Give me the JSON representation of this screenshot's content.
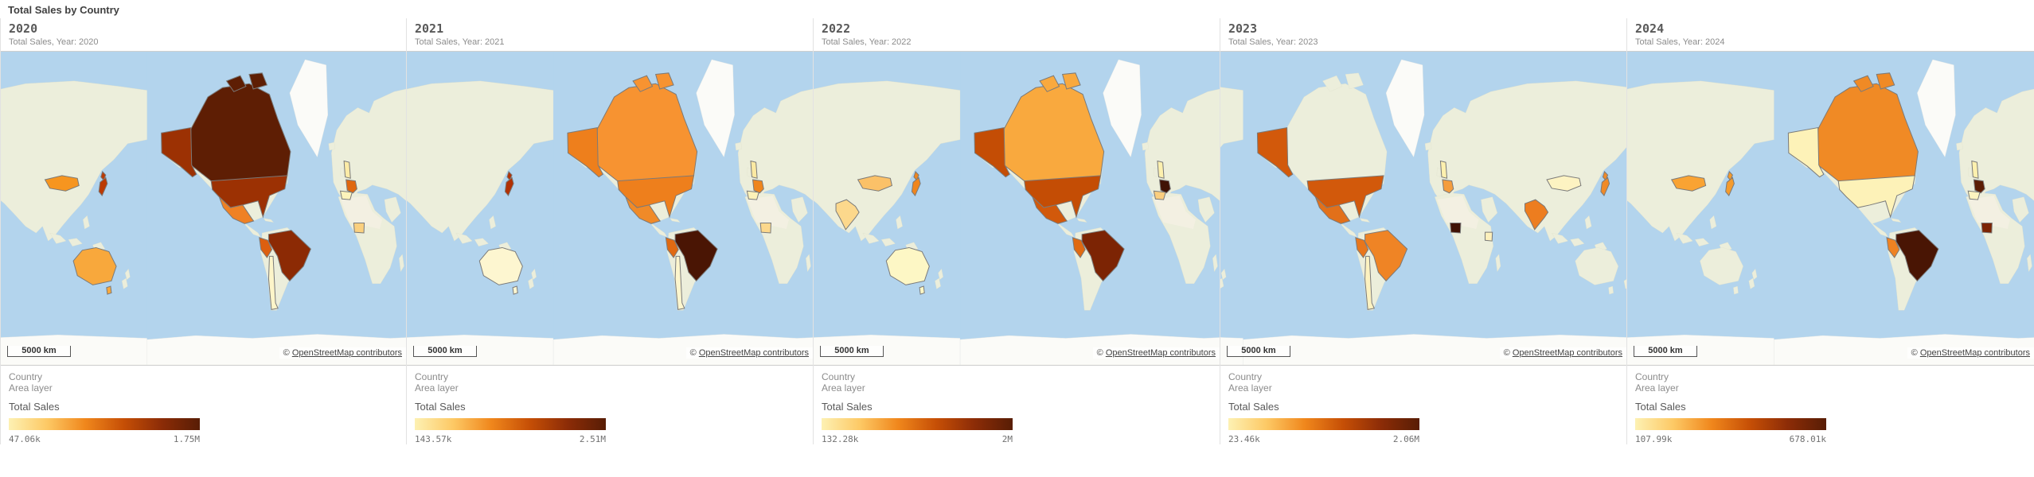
{
  "page": {
    "title": "Total Sales by Country"
  },
  "legend": {
    "dimension_label": "Country",
    "layer_label": "Area layer",
    "measure_label": "Total Sales"
  },
  "map_ui": {
    "scale_label": "5000 km",
    "attribution_symbol": "©",
    "attribution_link_text": "OpenStreetMap contributors"
  },
  "colors": {
    "ocean": "#b3d4ed",
    "land": "#eceedb",
    "ice": "#fbfbf8",
    "country_border": "#7a7a7a",
    "gradient_stops": [
      "#fdf1b3",
      "#fdc965",
      "#f0871c",
      "#c64f06",
      "#8c2c07",
      "#581d05"
    ]
  },
  "chart_data": [
    {
      "type": "choropleth_map",
      "year": "2020",
      "subtitle": "Total Sales, Year: 2020",
      "dimension": "Country",
      "measure": "Total Sales",
      "min_label": "47.06k",
      "max_label": "1.75M",
      "view": "pacific",
      "countries": {
        "canada": "#5e1e04",
        "usa": "#9c3103",
        "brazil": "#8c2a04",
        "japan": "#bb3a04",
        "peru": "#dc5f10",
        "mexico": "#ef8124",
        "france": "#e0670f",
        "mongolia": "#f6951f",
        "australia": "#f8a83c",
        "nigeria": "#fbd07e",
        "uk": "#fceba6",
        "spain": "#fdf3bb",
        "chile": "#fdf5c9"
      }
    },
    {
      "type": "choropleth_map",
      "year": "2021",
      "subtitle": "Total Sales, Year: 2021",
      "dimension": "Country",
      "measure": "Total Sales",
      "min_label": "143.57k",
      "max_label": "2.51M",
      "view": "pacific",
      "countries": {
        "brazil": "#4a1504",
        "japan": "#b23104",
        "peru": "#e06a12",
        "mexico": "#f08a28",
        "france": "#ef851d",
        "canada": "#f79331",
        "usa": "#ee7f1c",
        "uk": "#fbe9a2",
        "spain": "#fdf2b8",
        "nigeria": "#fcd88c",
        "chile": "#fdf6cd",
        "australia": "#fdf6d0"
      }
    },
    {
      "type": "choropleth_map",
      "year": "2022",
      "subtitle": "Total Sales, Year: 2022",
      "dimension": "Country",
      "measure": "Total Sales",
      "min_label": "132.28k",
      "max_label": "2M",
      "view": "pacific",
      "countries": {
        "france": "#401204",
        "brazil": "#7c2404",
        "usa": "#c44d05",
        "mexico": "#d2590b",
        "peru": "#e06a12",
        "japan": "#ef851d",
        "canada": "#f9a93e",
        "mongolia": "#fbc168",
        "india": "#fcd88c",
        "spain": "#fbce7e",
        "uk": "#fdf0ae",
        "australia": "#fdf7c5"
      }
    },
    {
      "type": "choropleth_map",
      "year": "2023",
      "subtitle": "Total Sales, Year: 2023",
      "dimension": "Country",
      "measure": "Total Sales",
      "min_label": "23.46k",
      "max_label": "2.06M",
      "view": "atlantic",
      "countries": {
        "nigeria": "#401204",
        "usa": "#d2590b",
        "mexico": "#e2701a",
        "peru": "#e8761c",
        "brazil": "#ef8425",
        "france": "#f59d3d",
        "india": "#ed7d1f",
        "japan": "#f08a28",
        "mongolia": "#fdf3c2",
        "kenya": "#fdf0bc",
        "uk": "#fdf0ae",
        "chile": "#fdf2c0"
      }
    },
    {
      "type": "choropleth_map",
      "year": "2024",
      "subtitle": "Total Sales, Year: 2024",
      "dimension": "Country",
      "measure": "Total Sales",
      "min_label": "107.99k",
      "max_label": "678.01k",
      "view": "pacific",
      "countries": {
        "brazil": "#491504",
        "france": "#5c1d04",
        "nigeria": "#7c2404",
        "canada": "#f08a25",
        "mongolia": "#f9a333",
        "japan": "#f59b2c",
        "peru": "#ef8222",
        "usa": "#fdf2b8",
        "spain": "#fdf4c0",
        "uk": "#fdf0ae"
      }
    }
  ]
}
